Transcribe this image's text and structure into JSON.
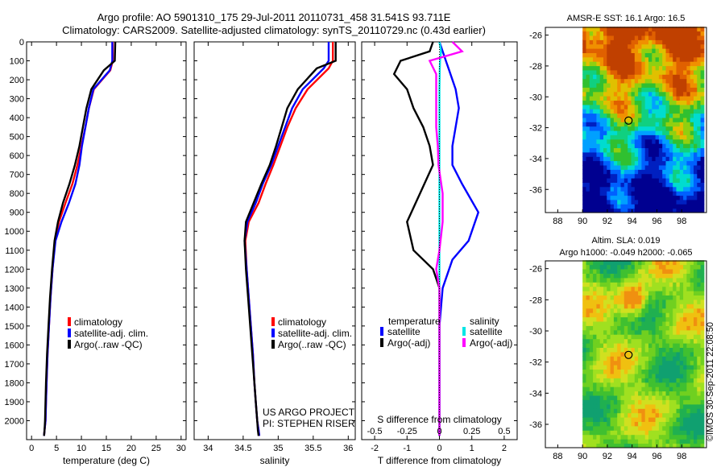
{
  "header": {
    "line1": "Argo profile: AO 5901310_175 29-Jul-2011 20110731_458 31.541S 93.711E",
    "line2": "Climatology: CARS2009. Satellite-adjusted climatology: synTS_20110729.nc (0.43d earlier)"
  },
  "credit": "©IMOS 30-Sep-2011 22:08:50",
  "colors": {
    "climatology": "#ff0000",
    "satellite": "#0000ff",
    "argo": "#000000",
    "sat_diff_s": "#00e5e5",
    "argo_diff_s": "#ff00ff"
  },
  "chart_data": [
    {
      "id": "temperature",
      "type": "line",
      "xlabel": "temperature (deg C)",
      "ylabel": "",
      "xlim": [
        -1,
        31
      ],
      "ylim": [
        2100,
        0
      ],
      "xticks": [
        "0",
        "5",
        "10",
        "15",
        "20",
        "25",
        "30"
      ],
      "xtick_values": [
        0,
        5,
        10,
        15,
        20,
        25,
        30
      ],
      "yticks": [
        "0",
        "100",
        "200",
        "300",
        "400",
        "500",
        "600",
        "700",
        "800",
        "900",
        "1000",
        "1100",
        "1200",
        "1300",
        "1400",
        "1500",
        "1600",
        "1700",
        "1800",
        "1900",
        "2000"
      ],
      "ytick_values": [
        0,
        100,
        200,
        300,
        400,
        500,
        600,
        700,
        800,
        900,
        1000,
        1100,
        1200,
        1300,
        1400,
        1500,
        1600,
        1700,
        1800,
        1900,
        2000
      ],
      "legend": [
        "climatology",
        "satellite-adj. clim.",
        "Argo(..raw -QC)"
      ],
      "series": [
        {
          "name": "climatology",
          "color": "#ff0000",
          "x": [
            16.3,
            16.3,
            15.8,
            12.5,
            11.5,
            10.8,
            10.0,
            9.2,
            8.2,
            6.8,
            5.5,
            4.7,
            4.2,
            3.8,
            3.5,
            3.2,
            3.0,
            2.9,
            2.8,
            2.6,
            2.5
          ],
          "y": [
            0,
            100,
            150,
            250,
            350,
            450,
            550,
            650,
            750,
            850,
            950,
            1050,
            1200,
            1350,
            1500,
            1650,
            1800,
            1900,
            2000,
            2050,
            2080
          ]
        },
        {
          "name": "satellite-adj. clim.",
          "color": "#0000ff",
          "x": [
            16.2,
            16.2,
            15.7,
            12.4,
            11.5,
            10.8,
            10.1,
            9.6,
            8.8,
            7.5,
            6.0,
            4.8,
            4.2,
            3.8,
            3.5,
            3.2,
            3.0,
            2.9,
            2.8,
            2.6,
            2.5
          ],
          "y": [
            0,
            100,
            150,
            250,
            350,
            450,
            550,
            650,
            750,
            850,
            950,
            1050,
            1200,
            1350,
            1500,
            1650,
            1800,
            1900,
            2000,
            2050,
            2080
          ]
        },
        {
          "name": "Argo(..raw -QC)",
          "color": "#000000",
          "x": [
            16.8,
            16.7,
            14.5,
            12.0,
            11.0,
            10.3,
            9.6,
            8.7,
            7.6,
            6.3,
            5.3,
            4.6,
            4.1,
            3.7,
            3.4,
            3.1,
            2.9,
            2.8,
            2.7,
            2.6,
            2.5
          ],
          "y": [
            0,
            100,
            150,
            250,
            350,
            450,
            550,
            650,
            750,
            850,
            950,
            1050,
            1200,
            1350,
            1500,
            1650,
            1800,
            1900,
            2000,
            2050,
            2080
          ]
        }
      ]
    },
    {
      "id": "salinity",
      "type": "line",
      "xlabel": "salinity",
      "ylabel": "",
      "xlim": [
        33.8,
        36.1
      ],
      "ylim": [
        2100,
        0
      ],
      "xticks": [
        "34",
        "34.5",
        "35",
        "35.5",
        "36"
      ],
      "xtick_values": [
        34,
        34.5,
        35,
        35.5,
        36
      ],
      "legend": [
        "climatology",
        "satellite-adj. clim.",
        "Argo(..raw -QC)"
      ],
      "annotations": [
        "US ARGO PROJECT",
        "PI: STEPHEN RISER"
      ],
      "series": [
        {
          "name": "climatology",
          "color": "#ff0000",
          "x": [
            35.78,
            35.78,
            35.72,
            35.42,
            35.25,
            35.13,
            35.03,
            34.93,
            34.82,
            34.72,
            34.58,
            34.53,
            34.55,
            34.58,
            34.61,
            34.64,
            34.66,
            34.68,
            34.7,
            34.72,
            34.73
          ],
          "y": [
            0,
            100,
            140,
            250,
            350,
            450,
            550,
            650,
            750,
            850,
            950,
            1050,
            1200,
            1350,
            1500,
            1650,
            1800,
            1900,
            2000,
            2050,
            2080
          ]
        },
        {
          "name": "satellite-adj. clim.",
          "color": "#0000ff",
          "x": [
            35.72,
            35.72,
            35.65,
            35.35,
            35.2,
            35.1,
            35.0,
            34.9,
            34.78,
            34.68,
            34.56,
            34.52,
            34.55,
            34.58,
            34.61,
            34.64,
            34.66,
            34.68,
            34.7,
            34.72,
            34.73
          ],
          "y": [
            0,
            100,
            140,
            250,
            350,
            450,
            550,
            650,
            750,
            850,
            950,
            1050,
            1200,
            1350,
            1500,
            1650,
            1800,
            1900,
            2000,
            2050,
            2080
          ]
        },
        {
          "name": "Argo(..raw -QC)",
          "color": "#000000",
          "x": [
            35.82,
            35.82,
            35.55,
            35.28,
            35.13,
            35.05,
            34.97,
            34.88,
            34.76,
            34.65,
            34.54,
            34.52,
            34.54,
            34.57,
            34.6,
            34.63,
            34.66,
            34.68,
            34.7,
            34.71,
            34.72
          ],
          "y": [
            0,
            100,
            140,
            250,
            350,
            450,
            550,
            650,
            750,
            850,
            950,
            1050,
            1200,
            1350,
            1500,
            1650,
            1800,
            1900,
            2000,
            2050,
            2080
          ]
        }
      ]
    },
    {
      "id": "difference",
      "type": "line",
      "xlabel": "T difference from climatology",
      "xlabel_top": "S difference from climatology",
      "xlim": [
        -2.4,
        2.4
      ],
      "ylim": [
        2100,
        0
      ],
      "xticks": [
        "-2",
        "-1",
        "0",
        "1",
        "2"
      ],
      "xtick_values": [
        -2,
        -1,
        0,
        1,
        2
      ],
      "s_ticks": [
        "-0.5",
        "-0.25",
        "0",
        "0.25",
        "0.5"
      ],
      "s_tick_values": [
        -0.5,
        -0.25,
        0,
        0.25,
        0.5
      ],
      "legend_titles": [
        "temperature",
        "salinity"
      ],
      "legend": [
        "satellite",
        "Argo(-adj)",
        "satellite",
        "Argo(-adj)"
      ],
      "series": [
        {
          "name": "satellite",
          "color": "#0000ff",
          "x": [
            0.0,
            0.1,
            0.2,
            0.3,
            0.5,
            0.6,
            0.5,
            0.4,
            0.4,
            0.7,
            1.2,
            0.9,
            0.4,
            0.1,
            0.0,
            0.0,
            0.0,
            0.0,
            0.0,
            0.0
          ],
          "y": [
            0,
            50,
            100,
            150,
            250,
            350,
            450,
            550,
            650,
            750,
            900,
            1050,
            1150,
            1300,
            1500,
            1700,
            1900,
            2000,
            2050,
            2080
          ]
        },
        {
          "name": "Argo(-adj)",
          "color": "#000000",
          "x": [
            -0.2,
            -0.3,
            -1.2,
            -1.4,
            -1.0,
            -0.8,
            -0.5,
            -0.3,
            -0.2,
            -0.6,
            -1.0,
            -0.8,
            -0.2,
            0.0,
            0.0,
            0.0,
            0.0,
            0.0,
            0.0,
            0.0
          ],
          "y": [
            0,
            50,
            100,
            170,
            250,
            350,
            450,
            550,
            650,
            800,
            950,
            1100,
            1200,
            1300,
            1500,
            1700,
            1900,
            2000,
            2050,
            2080
          ]
        },
        {
          "name": "satellite",
          "color": "#00e5e5",
          "x": [
            0.0,
            0.05,
            0.02,
            0.01,
            0.0,
            0.0,
            0.0,
            0.0,
            0.0,
            0.0,
            0.0,
            0.0,
            0.0,
            0.0,
            0.0,
            0.0,
            0.0,
            0.0,
            0.0,
            0.0
          ],
          "y": [
            0,
            50,
            100,
            150,
            250,
            350,
            450,
            550,
            650,
            750,
            900,
            1050,
            1150,
            1300,
            1500,
            1700,
            1900,
            2000,
            2050,
            2080
          ]
        },
        {
          "name": "Argo(-adj)",
          "color": "#ff00ff",
          "x": [
            0.4,
            0.7,
            -0.3,
            -0.1,
            -0.1,
            -0.1,
            -0.1,
            -0.05,
            -0.03,
            0.1,
            0.1,
            0.0,
            -0.1,
            0.0,
            0.0,
            0.0,
            0.0,
            0.0,
            0.0,
            0.0
          ],
          "y": [
            0,
            50,
            100,
            170,
            250,
            350,
            450,
            550,
            650,
            800,
            950,
            1100,
            1200,
            1300,
            1500,
            1700,
            1900,
            2000,
            2050,
            2080
          ]
        }
      ]
    },
    {
      "id": "sst_map",
      "type": "heatmap",
      "title": "AMSR-E SST: 16.1  Argo: 16.5",
      "xlim": [
        87,
        100
      ],
      "ylim": [
        -37.5,
        -25.5
      ],
      "xticks": [
        "88",
        "90",
        "92",
        "94",
        "96",
        "98"
      ],
      "xtick_values": [
        88,
        90,
        92,
        94,
        96,
        98
      ],
      "yticks": [
        "-26",
        "-28",
        "-30",
        "-32",
        "-34",
        "-36"
      ],
      "ytick_values": [
        -26,
        -28,
        -30,
        -32,
        -34,
        -36
      ],
      "data_xlim": [
        90,
        99.8
      ],
      "marker": {
        "lon": 93.711,
        "lat": -31.541
      }
    },
    {
      "id": "sla_map",
      "type": "heatmap",
      "title": "Altim. SLA: 0.019",
      "subtitle": "Argo h1000: -0.049 h2000: -0.065",
      "xlim": [
        87,
        100
      ],
      "ylim": [
        -37.5,
        -25.5
      ],
      "xticks": [
        "88",
        "90",
        "92",
        "94",
        "96",
        "98"
      ],
      "xtick_values": [
        88,
        90,
        92,
        94,
        96,
        98
      ],
      "yticks": [
        "-26",
        "-28",
        "-30",
        "-32",
        "-34",
        "-36"
      ],
      "ytick_values": [
        -26,
        -28,
        -30,
        -32,
        -34,
        -36
      ],
      "data_xlim": [
        90,
        99.8
      ],
      "marker": {
        "lon": 93.711,
        "lat": -31.541
      }
    }
  ]
}
